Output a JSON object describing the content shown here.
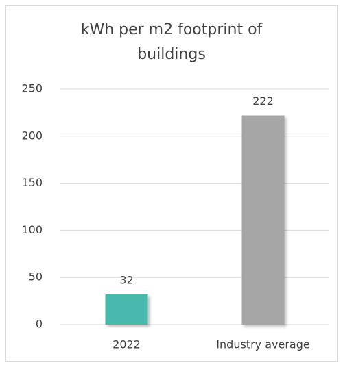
{
  "chart_data": {
    "type": "bar",
    "title": "kWh per m2 footprint of buildings",
    "categories": [
      "2022",
      "Industry average"
    ],
    "values": [
      32,
      222
    ],
    "colors": [
      "#48b9ad",
      "#a6a6a6"
    ],
    "ylim": [
      0,
      250
    ],
    "yticks": [
      0,
      50,
      100,
      150,
      200,
      250
    ],
    "grid": true
  }
}
